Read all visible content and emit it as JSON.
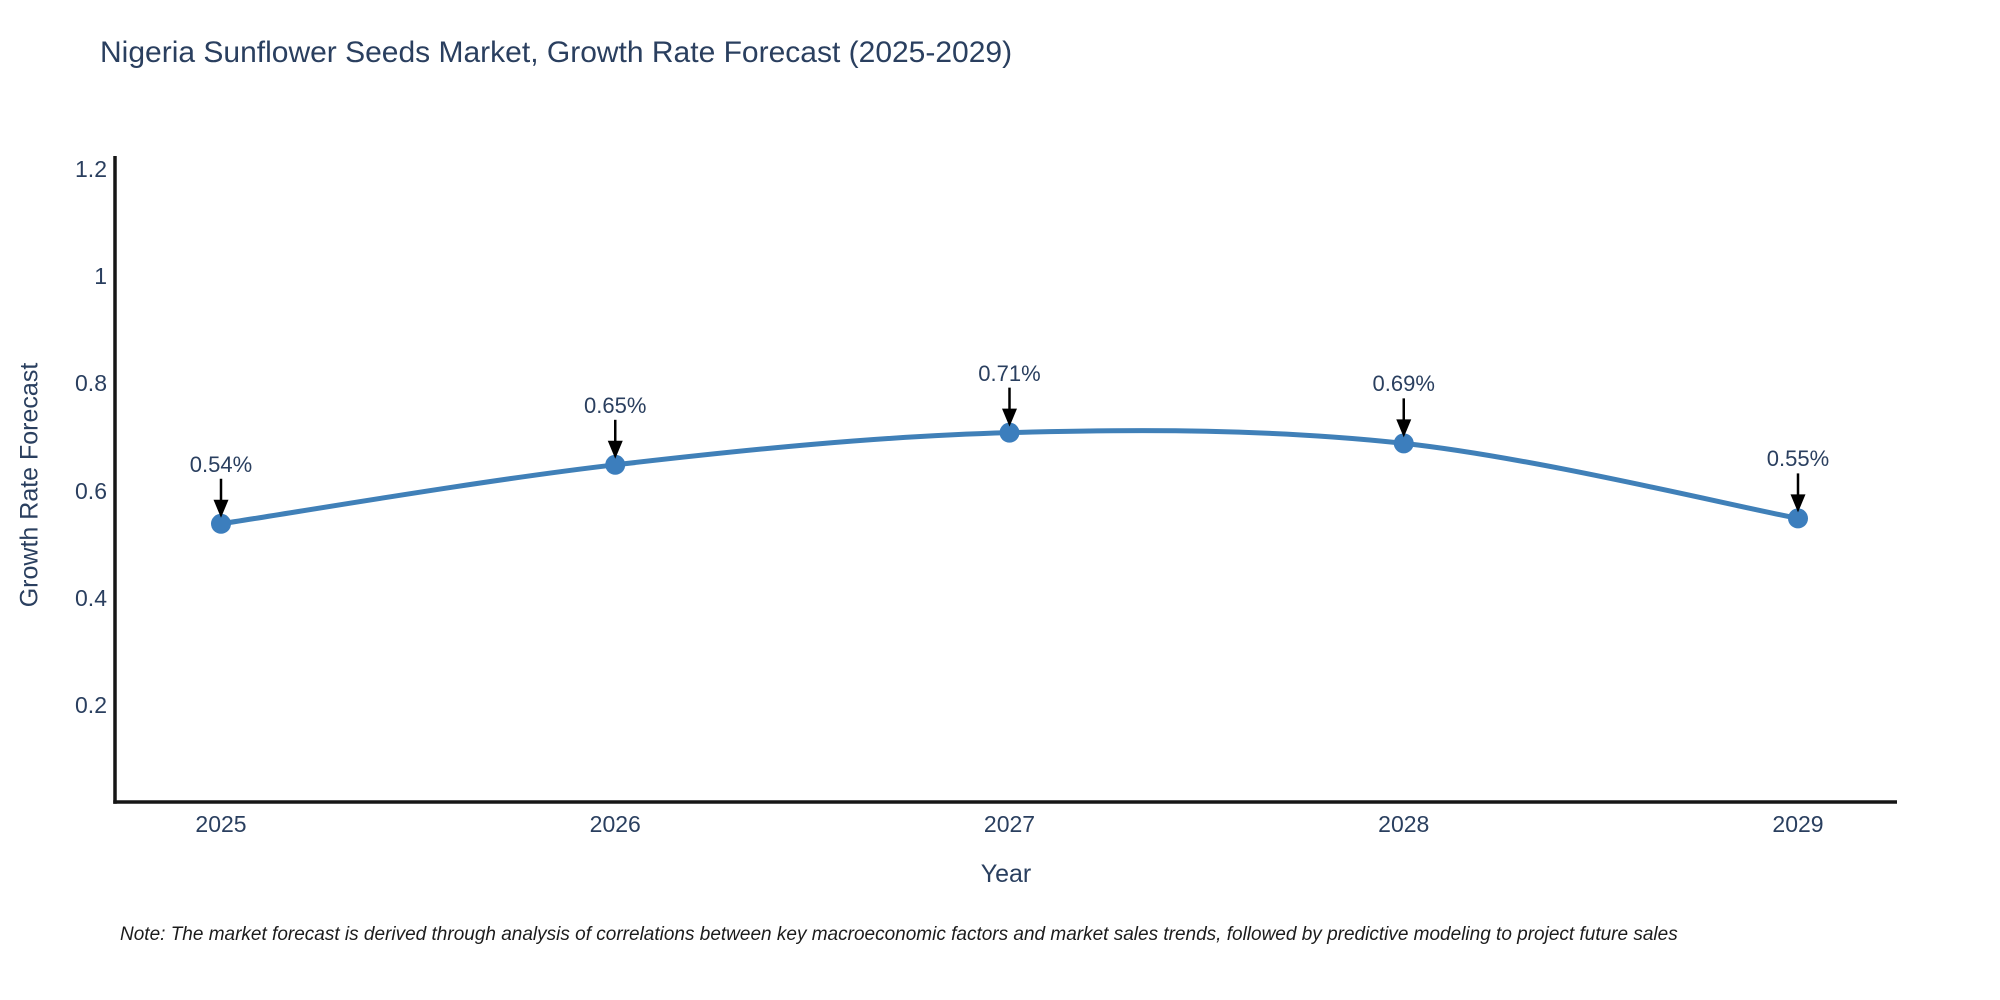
{
  "title": "Nigeria Sunflower Seeds Market, Growth Rate Forecast (2025-2029)",
  "note": "Note: The market forecast is derived through analysis of correlations between key macroeconomic factors and market sales trends, followed by predictive modeling to project future sales",
  "chart_data": {
    "type": "line",
    "curve": "spline",
    "title": "Nigeria Sunflower Seeds Market, Growth Rate Forecast (2025-2029)",
    "xlabel": "Year",
    "ylabel": "Growth Rate Forecast",
    "categories": [
      "2025",
      "2026",
      "2027",
      "2028",
      "2029"
    ],
    "series": [
      {
        "name": "Growth Rate Forecast",
        "values": [
          0.54,
          0.65,
          0.71,
          0.69,
          0.55
        ]
      }
    ],
    "point_labels": [
      "0.54%",
      "0.65%",
      "0.71%",
      "0.69%",
      "0.55%"
    ],
    "annotation_style": "black-down-arrow-to-point",
    "y_ticks": [
      1.2,
      1.0,
      0.8,
      0.6,
      0.4,
      0.2
    ],
    "ylim": [
      0.02,
      1.22
    ],
    "grid": false,
    "legend": "none",
    "colors": {
      "line": "#4080b8",
      "marker": "#3c7ebd",
      "axis": "#161616",
      "labels": "#2a3f5f",
      "arrow": "#000000",
      "background": "#ffffff"
    }
  }
}
